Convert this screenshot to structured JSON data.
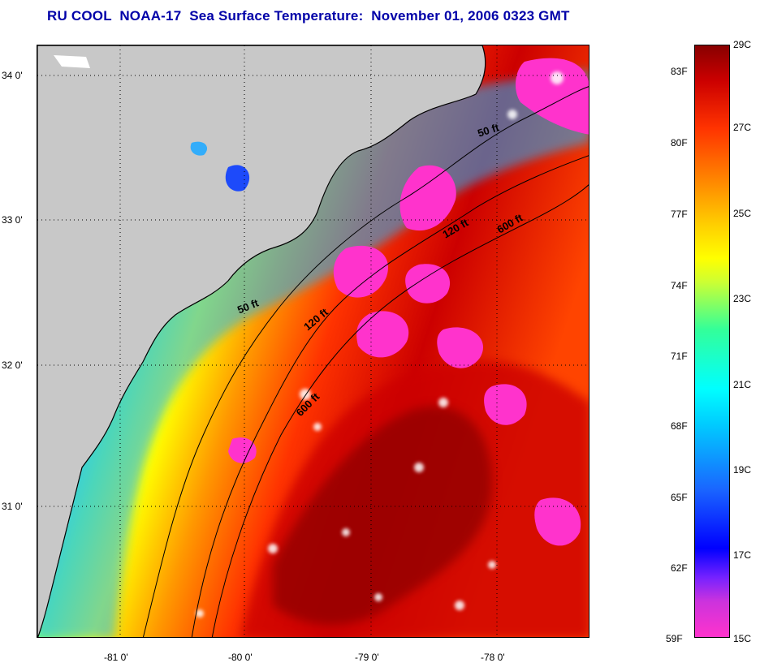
{
  "title": "RU COOL  NOAA-17  Sea Surface Temperature:  November 01, 2006 0323 GMT",
  "colors": {
    "land": "#c8c8c8",
    "cloud": "#ff33cc",
    "title": "#0000a8",
    "cold": "#1a66ff",
    "warm": "#cc0000",
    "hot": "#880000"
  },
  "axes": {
    "latitude_labels": [
      "34 0'",
      "33 0'",
      "32 0'",
      "31 0'"
    ],
    "longitude_labels": [
      "-81 0'",
      "-80 0'",
      "-79 0'",
      "-78 0'"
    ]
  },
  "contours": {
    "labels": [
      "50 ft",
      "120 ft",
      "600 ft",
      "50 ft",
      "120 ft",
      "600 ft"
    ]
  },
  "colorbar": {
    "fahrenheit_labels": [
      "83F",
      "80F",
      "77F",
      "74F",
      "71F",
      "68F",
      "65F",
      "62F",
      "59F"
    ],
    "celsius_labels": [
      "29C",
      "27C",
      "25C",
      "23C",
      "21C",
      "19C",
      "17C",
      "15C"
    ]
  }
}
